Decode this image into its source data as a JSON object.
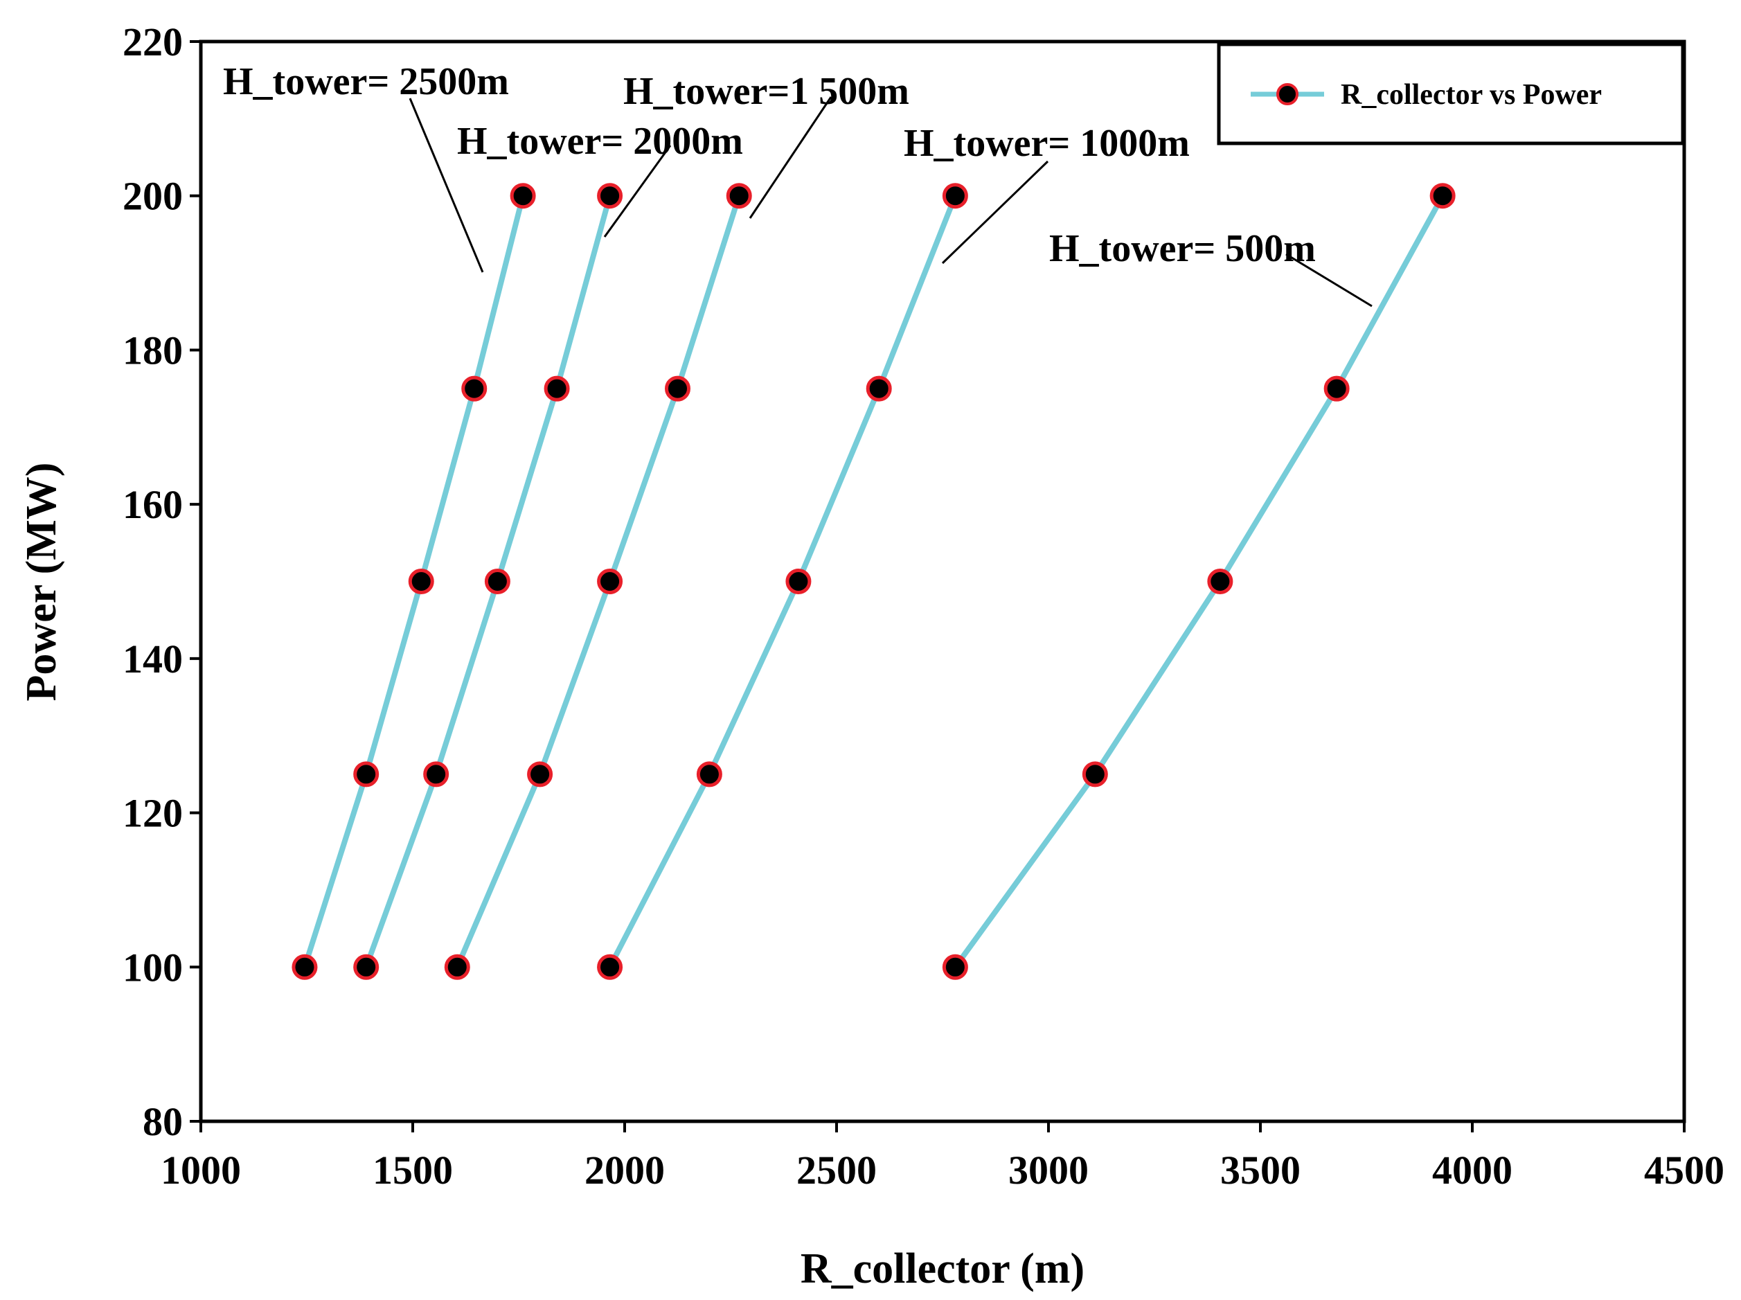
{
  "chart_data": {
    "type": "line",
    "title": "",
    "xlabel": "R_collector (m)",
    "ylabel": "Power (MW)",
    "xlim": [
      1000,
      4500
    ],
    "ylim": [
      80,
      220
    ],
    "xticks": [
      1000,
      1500,
      2000,
      2500,
      3000,
      3500,
      4000,
      4500
    ],
    "yticks": [
      80,
      100,
      120,
      140,
      160,
      180,
      200,
      220
    ],
    "grid": false,
    "legend": {
      "position": "top-right",
      "label": "R_collector vs Power"
    },
    "y": [
      100,
      125,
      150,
      175,
      200
    ],
    "series": [
      {
        "name": "H_tower= 2500m",
        "x": [
          1245,
          1390,
          1520,
          1645,
          1760
        ]
      },
      {
        "name": "H_tower= 2000m",
        "x": [
          1390,
          1555,
          1700,
          1840,
          1965
        ]
      },
      {
        "name": "H_tower=1 500m",
        "x": [
          1605,
          1800,
          1965,
          2125,
          2270
        ]
      },
      {
        "name": "H_tower= 1000m",
        "x": [
          1965,
          2200,
          2410,
          2600,
          2780
        ]
      },
      {
        "name": "H_tower= 500m",
        "x": [
          2780,
          3110,
          3405,
          3680,
          3930
        ]
      }
    ],
    "annotations": [
      {
        "text": "H_tower= 2500m",
        "series": 0
      },
      {
        "text": "H_tower= 2000m",
        "series": 1
      },
      {
        "text": "H_tower=1 500m",
        "series": 2
      },
      {
        "text": "H_tower= 1000m",
        "series": 3
      },
      {
        "text": "H_tower= 500m",
        "series": 4
      }
    ],
    "colors": {
      "line": "#76CCD8",
      "marker_fill": "#000000",
      "marker_edge": "#E8202A",
      "axis": "#000000"
    }
  }
}
